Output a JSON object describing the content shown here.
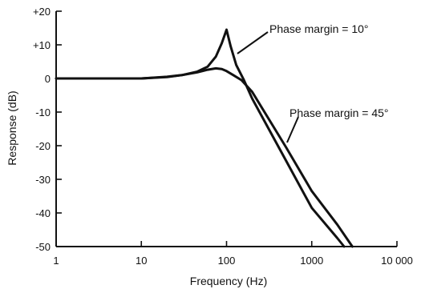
{
  "chart_data": {
    "type": "line",
    "title": "",
    "xlabel": "Frequency (Hz)",
    "ylabel": "Response (dB)",
    "x_scale": "log",
    "xlim": [
      1,
      10000
    ],
    "ylim": [
      -50,
      20
    ],
    "x_ticks": [
      1,
      10,
      100,
      1000,
      10000
    ],
    "x_tick_labels": [
      "1",
      "10",
      "100",
      "1000",
      "10 000"
    ],
    "y_ticks": [
      20,
      10,
      0,
      -10,
      -20,
      -30,
      -40,
      -50
    ],
    "y_tick_labels": [
      "+20",
      "+10",
      "0",
      "-10",
      "-20",
      "-30",
      "-40",
      "-50"
    ],
    "grid": false,
    "series": [
      {
        "name": "Phase margin = 10°",
        "x": [
          1,
          10,
          20,
          30,
          45,
          60,
          75,
          88,
          100,
          112,
          130,
          160,
          200,
          500,
          1000,
          2000,
          2400
        ],
        "y": [
          0,
          0,
          0.5,
          1.0,
          2.0,
          3.5,
          6.5,
          10.5,
          14.5,
          9.5,
          4.0,
          -0.5,
          -6.0,
          -24.5,
          -38.5,
          -47.5,
          -50.0
        ]
      },
      {
        "name": "Phase margin = 45°",
        "x": [
          1,
          10,
          20,
          30,
          45,
          60,
          75,
          88,
          100,
          120,
          150,
          200,
          500,
          1000,
          2000,
          3000
        ],
        "y": [
          0,
          0,
          0.4,
          1.0,
          1.8,
          2.6,
          3.0,
          2.8,
          2.2,
          1.0,
          -0.5,
          -4.0,
          -20.5,
          -33.5,
          -43.5,
          -50.0
        ]
      }
    ],
    "annotations": [
      "Phase margin = 10°",
      "Phase margin = 45°"
    ]
  }
}
